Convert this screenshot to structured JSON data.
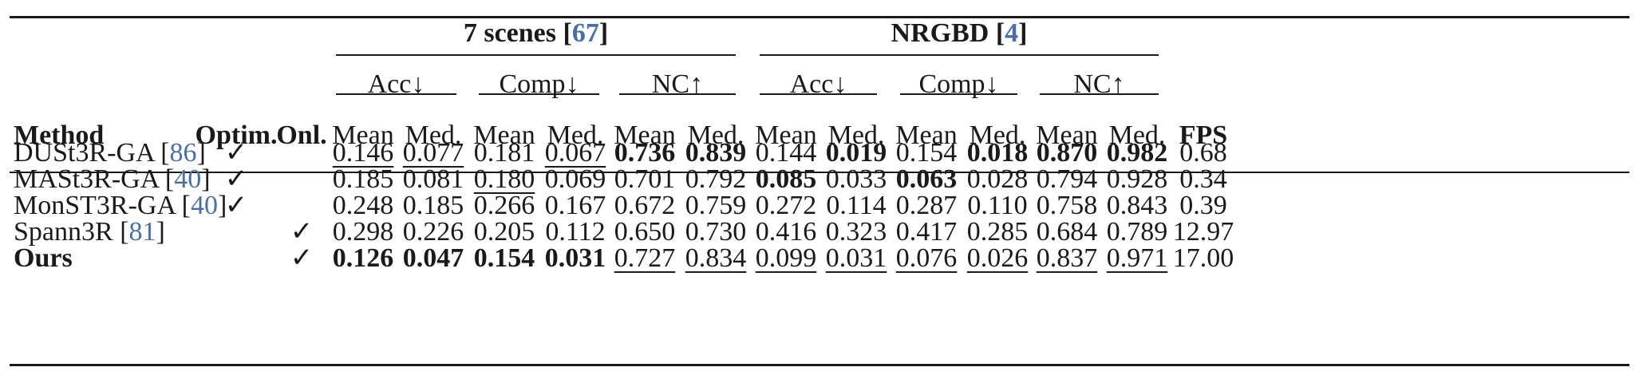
{
  "groups": [
    {
      "name": "7 scenes",
      "ref": "67"
    },
    {
      "name": "NRGBD",
      "ref": "4"
    }
  ],
  "metrics": [
    "Acc↓",
    "Comp↓",
    "NC↑",
    "Acc↓",
    "Comp↓",
    "NC↑"
  ],
  "columns": {
    "method": "Method",
    "optim": "Optim.",
    "onl": "Onl.",
    "stats": [
      "Mean",
      "Med.",
      "Mean",
      "Med.",
      "Mean",
      "Med.",
      "Mean",
      "Med.",
      "Mean",
      "Med.",
      "Mean",
      "Med."
    ],
    "fps": "FPS"
  },
  "rows": [
    {
      "method": "DUSt3R-GA",
      "ref": "86",
      "bold_name": false,
      "optim": "✓",
      "onl": "",
      "values": [
        "0.146",
        "0.077",
        "0.181",
        "0.067",
        "0.736",
        "0.839",
        "0.144",
        "0.019",
        "0.154",
        "0.018",
        "0.870",
        "0.982"
      ],
      "bold": [
        false,
        false,
        false,
        false,
        true,
        true,
        false,
        true,
        false,
        true,
        true,
        true
      ],
      "underline": [
        true,
        true,
        false,
        true,
        false,
        false,
        false,
        false,
        false,
        false,
        false,
        false
      ],
      "fps": "0.68"
    },
    {
      "method": "MASt3R-GA",
      "ref": "40",
      "bold_name": false,
      "optim": "✓",
      "onl": "",
      "values": [
        "0.185",
        "0.081",
        "0.180",
        "0.069",
        "0.701",
        "0.792",
        "0.085",
        "0.033",
        "0.063",
        "0.028",
        "0.794",
        "0.928"
      ],
      "bold": [
        false,
        false,
        false,
        false,
        false,
        false,
        true,
        false,
        true,
        false,
        false,
        false
      ],
      "underline": [
        false,
        false,
        true,
        false,
        false,
        false,
        false,
        false,
        false,
        false,
        false,
        false
      ],
      "fps": "0.34"
    },
    {
      "method": "MonST3R-GA",
      "ref": "40",
      "bold_name": false,
      "optim": "✓",
      "onl": "",
      "values": [
        "0.248",
        "0.185",
        "0.266",
        "0.167",
        "0.672",
        "0.759",
        "0.272",
        "0.114",
        "0.287",
        "0.110",
        "0.758",
        "0.843"
      ],
      "bold": [
        false,
        false,
        false,
        false,
        false,
        false,
        false,
        false,
        false,
        false,
        false,
        false
      ],
      "underline": [
        false,
        false,
        false,
        false,
        false,
        false,
        false,
        false,
        false,
        false,
        false,
        false
      ],
      "fps": "0.39"
    },
    {
      "method": "Spann3R",
      "ref": "81",
      "bold_name": false,
      "optim": "",
      "onl": "✓",
      "values": [
        "0.298",
        "0.226",
        "0.205",
        "0.112",
        "0.650",
        "0.730",
        "0.416",
        "0.323",
        "0.417",
        "0.285",
        "0.684",
        "0.789"
      ],
      "bold": [
        false,
        false,
        false,
        false,
        false,
        false,
        false,
        false,
        false,
        false,
        false,
        false
      ],
      "underline": [
        false,
        false,
        false,
        false,
        false,
        false,
        false,
        false,
        false,
        false,
        false,
        false
      ],
      "fps": "12.97"
    },
    {
      "method": "Ours",
      "ref": "",
      "bold_name": true,
      "optim": "",
      "onl": "✓",
      "values": [
        "0.126",
        "0.047",
        "0.154",
        "0.031",
        "0.727",
        "0.834",
        "0.099",
        "0.031",
        "0.076",
        "0.026",
        "0.837",
        "0.971"
      ],
      "bold": [
        true,
        true,
        true,
        true,
        false,
        false,
        false,
        false,
        false,
        false,
        false,
        false
      ],
      "underline": [
        false,
        false,
        false,
        false,
        true,
        true,
        true,
        true,
        true,
        true,
        true,
        true
      ],
      "fps": "17.00"
    }
  ]
}
